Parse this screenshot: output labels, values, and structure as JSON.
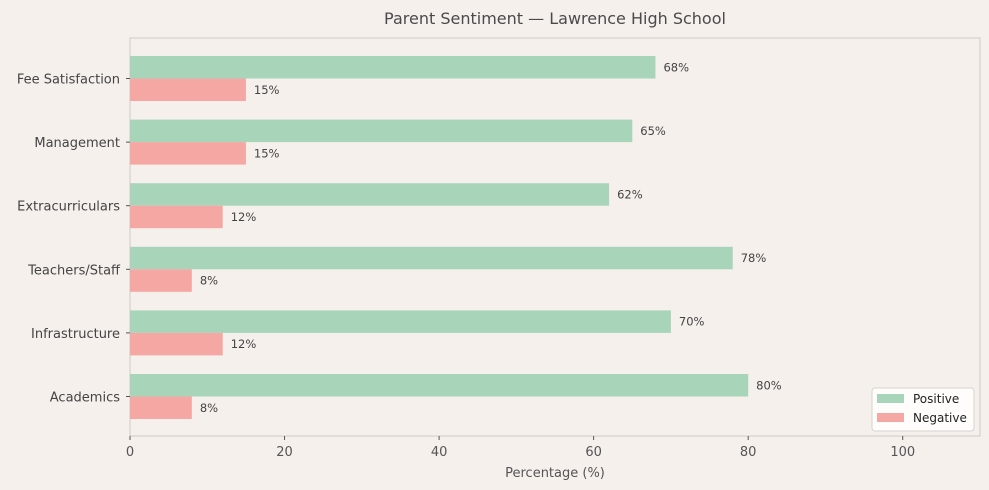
{
  "chart_data": {
    "type": "bar",
    "orientation": "horizontal",
    "title": "Parent Sentiment — Lawrence High School",
    "xlabel": "Percentage (%)",
    "ylabel": "",
    "xlim": [
      0,
      110
    ],
    "xticks": [
      0,
      20,
      40,
      60,
      80,
      100
    ],
    "categories": [
      "Fee Satisfaction",
      "Management",
      "Extracurriculars",
      "Teachers/Staff",
      "Infrastructure",
      "Academics"
    ],
    "series": [
      {
        "name": "Positive",
        "color": "#a8d5ba",
        "values": [
          68,
          65,
          62,
          78,
          70,
          80
        ]
      },
      {
        "name": "Negative",
        "color": "#f5a8a3",
        "values": [
          15,
          15,
          12,
          8,
          12,
          8
        ]
      }
    ],
    "value_suffix": "%",
    "legend_position": "lower-right",
    "grid": false
  }
}
